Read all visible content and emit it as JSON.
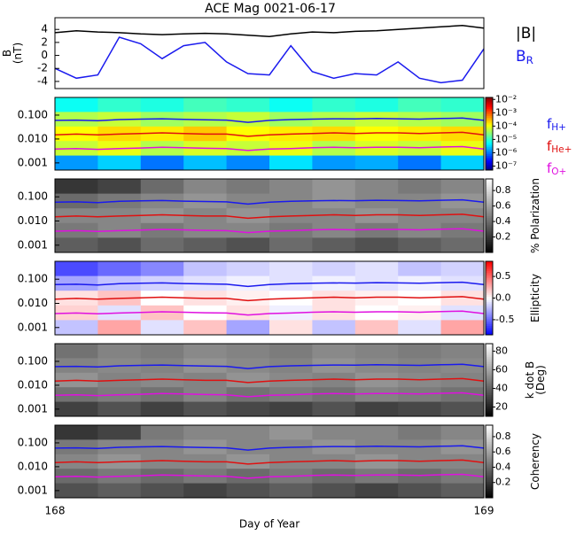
{
  "chart_data": [
    {
      "type": "line",
      "title": "ACE Mag 0021-06-17",
      "ylabel_lines": [
        "B",
        "(nT)"
      ],
      "x": [
        168.0,
        168.05,
        168.1,
        168.15,
        168.2,
        168.25,
        168.3,
        168.35,
        168.4,
        168.45,
        168.5,
        168.55,
        168.6,
        168.65,
        168.7,
        168.75,
        168.8,
        168.85,
        168.9,
        168.95,
        169.0
      ],
      "xlim": [
        168,
        169
      ],
      "ylim": [
        -5.1,
        5.8
      ],
      "yticks": [
        4,
        2,
        0,
        -2,
        -4
      ],
      "series": [
        {
          "name": "|B|",
          "color": "#000000",
          "values": [
            3.5,
            3.8,
            3.6,
            3.5,
            3.3,
            3.2,
            3.3,
            3.4,
            3.3,
            3.1,
            2.9,
            3.3,
            3.6,
            3.5,
            3.7,
            3.8,
            4.0,
            4.2,
            4.4,
            4.6,
            4.2
          ]
        },
        {
          "name": "B",
          "subscript": "R",
          "color": "#1a1aee",
          "values": [
            -2.0,
            -3.5,
            -3.0,
            2.8,
            1.8,
            -0.5,
            1.5,
            2.0,
            -1.0,
            -2.8,
            -3.0,
            1.5,
            -2.5,
            -3.5,
            -2.8,
            -3.0,
            -1.0,
            -3.5,
            -4.2,
            -3.8,
            1.0
          ]
        }
      ]
    },
    {
      "type": "heatmap",
      "log": true,
      "ylim": [
        0.0005,
        0.55
      ],
      "yticks": [
        {
          "value": 0.1,
          "label": "0.100"
        },
        {
          "value": 0.01,
          "label": "0.010"
        },
        {
          "value": 0.001,
          "label": "0.001"
        }
      ],
      "colormap": "jet",
      "clim": [
        -7.3,
        -1.85
      ],
      "cticks": [
        {
          "value": -2,
          "label": "10⁻²"
        },
        {
          "value": -3,
          "label": "10⁻³"
        },
        {
          "value": -4,
          "label": "10⁻⁴"
        },
        {
          "value": -5,
          "label": "10⁻⁵"
        },
        {
          "value": -6,
          "label": "10⁻⁶"
        },
        {
          "value": -7,
          "label": "10⁻⁷"
        }
      ],
      "z": [
        [
          -5.2,
          -5.0,
          -5.1,
          -4.9,
          -5.0,
          -5.2,
          -5.0,
          -5.1,
          -4.9,
          -5.0
        ],
        [
          -4.3,
          -4.2,
          -4.4,
          -4.3,
          -4.2,
          -4.4,
          -4.3,
          -4.2,
          -4.3,
          -4.4
        ],
        [
          -3.9,
          -3.7,
          -3.8,
          -3.6,
          -3.9,
          -3.8,
          -3.7,
          -3.9,
          -3.8,
          -3.7
        ],
        [
          -4.2,
          -4.0,
          -4.3,
          -4.1,
          -4.2,
          -4.0,
          -4.3,
          -4.1,
          -4.2,
          -4.0
        ],
        [
          -5.8,
          -5.5,
          -6.0,
          -5.6,
          -5.9,
          -5.4,
          -5.8,
          -5.7,
          -6.0,
          -5.5
        ]
      ],
      "series": [
        {
          "name": "f",
          "subscript": "H+",
          "color": "#1a1aee",
          "values": [
            0.06,
            0.062,
            0.058,
            0.065,
            0.068,
            0.07,
            0.066,
            0.064,
            0.062,
            0.05,
            0.06,
            0.065,
            0.068,
            0.07,
            0.069,
            0.072,
            0.07,
            0.068,
            0.072,
            0.075,
            0.06
          ]
        },
        {
          "name": "f",
          "subscript": "He+",
          "color": "#e01010",
          "values": [
            0.015,
            0.016,
            0.015,
            0.016,
            0.017,
            0.018,
            0.017,
            0.016,
            0.016,
            0.013,
            0.015,
            0.016,
            0.017,
            0.018,
            0.017,
            0.018,
            0.018,
            0.017,
            0.018,
            0.019,
            0.015
          ]
        },
        {
          "name": "f",
          "subscript": "O+",
          "color": "#e010e0",
          "values": [
            0.0038,
            0.004,
            0.0037,
            0.004,
            0.0042,
            0.0045,
            0.0043,
            0.0041,
            0.004,
            0.0033,
            0.0038,
            0.004,
            0.0043,
            0.0045,
            0.0043,
            0.0045,
            0.0045,
            0.0043,
            0.0046,
            0.0048,
            0.0038
          ]
        }
      ]
    },
    {
      "type": "heatmap",
      "log": true,
      "ylim": [
        0.0005,
        0.55
      ],
      "yticks": [
        {
          "value": 0.1,
          "label": "0.100"
        },
        {
          "value": 0.01,
          "label": "0.010"
        },
        {
          "value": 0.001,
          "label": "0.001"
        }
      ],
      "colormap": "gray",
      "clim": [
        0,
        0.95
      ],
      "clabel_lines": [
        "% Polarization"
      ],
      "cticks": [
        0.2,
        0.4,
        0.6,
        0.8
      ],
      "z": [
        [
          0.2,
          0.25,
          0.4,
          0.5,
          0.45,
          0.5,
          0.55,
          0.5,
          0.45,
          0.5
        ],
        [
          0.4,
          0.45,
          0.5,
          0.55,
          0.5,
          0.5,
          0.55,
          0.5,
          0.5,
          0.55
        ],
        [
          0.5,
          0.5,
          0.55,
          0.5,
          0.55,
          0.5,
          0.5,
          0.55,
          0.5,
          0.5
        ],
        [
          0.45,
          0.5,
          0.45,
          0.5,
          0.5,
          0.45,
          0.5,
          0.45,
          0.5,
          0.45
        ],
        [
          0.35,
          0.3,
          0.4,
          0.35,
          0.3,
          0.4,
          0.35,
          0.3,
          0.35,
          0.4
        ]
      ]
    },
    {
      "type": "heatmap",
      "log": true,
      "ylim": [
        0.0005,
        0.55
      ],
      "yticks": [
        {
          "value": 0.1,
          "label": "0.100"
        },
        {
          "value": 0.01,
          "label": "0.010"
        },
        {
          "value": 0.001,
          "label": "0.001"
        }
      ],
      "colormap": "bwr",
      "clim": [
        -0.85,
        0.85
      ],
      "clabel_lines": [
        "Ellipticity"
      ],
      "cticks": [
        -0.5,
        {
          "value": 0,
          "label": "0.0"
        },
        0.5
      ],
      "z": [
        [
          -0.6,
          -0.5,
          -0.4,
          -0.2,
          -0.15,
          -0.1,
          -0.15,
          -0.1,
          -0.2,
          -0.15
        ],
        [
          -0.3,
          -0.2,
          -0.15,
          -0.1,
          -0.05,
          -0.1,
          -0.05,
          -0.1,
          -0.05,
          -0.1
        ],
        [
          0.1,
          0.2,
          0.0,
          0.1,
          0.05,
          0.0,
          0.1,
          0.05,
          0.0,
          0.1
        ],
        [
          0.15,
          -0.1,
          0.2,
          0.0,
          0.1,
          -0.05,
          0.1,
          0.0,
          0.05,
          -0.1
        ],
        [
          -0.2,
          0.3,
          -0.1,
          0.2,
          -0.3,
          0.1,
          -0.2,
          0.2,
          -0.1,
          0.3
        ]
      ]
    },
    {
      "type": "heatmap",
      "log": true,
      "ylim": [
        0.0005,
        0.55
      ],
      "yticks": [
        {
          "value": 0.1,
          "label": "0.100"
        },
        {
          "value": 0.01,
          "label": "0.010"
        },
        {
          "value": 0.001,
          "label": "0.001"
        }
      ],
      "colormap": "gray",
      "clim": [
        10,
        88
      ],
      "clabel_lines": [
        "k dot B",
        "(Deg)"
      ],
      "cticks": [
        20,
        40,
        60,
        80
      ],
      "z": [
        [
          45,
          50,
          48,
          52,
          50,
          48,
          52,
          50,
          48,
          50
        ],
        [
          50,
          52,
          50,
          55,
          52,
          50,
          55,
          52,
          50,
          52
        ],
        [
          55,
          50,
          52,
          50,
          55,
          52,
          50,
          55,
          52,
          50
        ],
        [
          45,
          48,
          45,
          50,
          45,
          48,
          45,
          50,
          48,
          45
        ],
        [
          30,
          35,
          30,
          35,
          32,
          30,
          35,
          30,
          32,
          35
        ]
      ]
    },
    {
      "type": "heatmap",
      "log": true,
      "ylim": [
        0.0005,
        0.55
      ],
      "yticks": [
        {
          "value": 0.1,
          "label": "0.100"
        },
        {
          "value": 0.01,
          "label": "0.010"
        },
        {
          "value": 0.001,
          "label": "0.001"
        }
      ],
      "colormap": "gray",
      "clim": [
        0,
        0.95
      ],
      "clabel_lines": [
        "Coherency"
      ],
      "cticks": [
        0.2,
        0.4,
        0.6,
        0.8
      ],
      "xticks": [
        168,
        169
      ],
      "xlabel": "Day of Year",
      "z": [
        [
          0.2,
          0.25,
          0.45,
          0.5,
          0.5,
          0.55,
          0.5,
          0.5,
          0.45,
          0.5
        ],
        [
          0.45,
          0.5,
          0.5,
          0.55,
          0.5,
          0.5,
          0.55,
          0.5,
          0.5,
          0.55
        ],
        [
          0.5,
          0.55,
          0.5,
          0.5,
          0.55,
          0.5,
          0.5,
          0.55,
          0.5,
          0.5
        ],
        [
          0.4,
          0.45,
          0.4,
          0.45,
          0.4,
          0.45,
          0.4,
          0.45,
          0.4,
          0.45
        ],
        [
          0.3,
          0.35,
          0.3,
          0.25,
          0.3,
          0.35,
          0.3,
          0.25,
          0.3,
          0.35
        ]
      ]
    }
  ]
}
